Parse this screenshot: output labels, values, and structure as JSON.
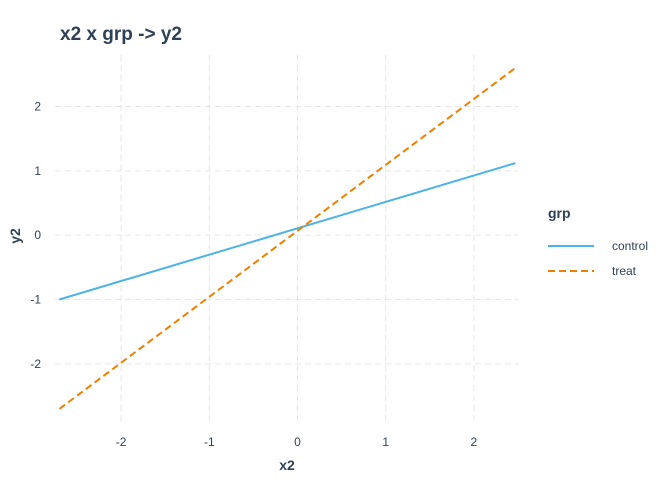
{
  "chart_data": {
    "type": "line",
    "title": "x2 x grp -> y2",
    "xlabel": "x2",
    "ylabel": "y2",
    "xlim": [
      -2.75,
      2.5
    ],
    "ylim": [
      -2.95,
      2.8
    ],
    "x_ticks": [
      -2,
      -1,
      0,
      1,
      2
    ],
    "y_ticks": [
      -2,
      -1,
      0,
      1,
      2
    ],
    "grid": true,
    "legend": {
      "title": "grp",
      "placement": "right"
    },
    "series": [
      {
        "name": "control",
        "color": "#4db3e6",
        "line_style": "solid",
        "x": [
          -2.7,
          2.47
        ],
        "y": [
          -1.0,
          1.12
        ]
      },
      {
        "name": "treat",
        "color": "#f07f00",
        "line_style": "dashed",
        "x": [
          -2.7,
          2.47
        ],
        "y": [
          -2.7,
          2.6
        ]
      }
    ]
  }
}
